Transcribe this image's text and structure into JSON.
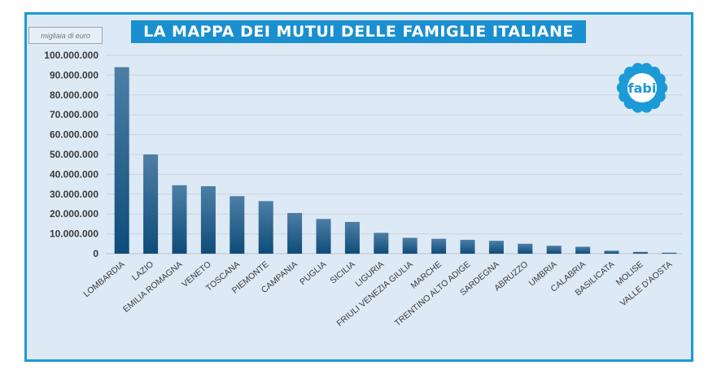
{
  "title": "LA MAPPA DEI MUTUI DELLE FAMIGLIE ITALIANE",
  "unit_label": "migliaia di euro",
  "logo_text": "fabi",
  "colors": {
    "frame": "#1c9ad6",
    "title_bg": "#1a8fd0",
    "bar_top": "#4d7fa6",
    "bar_bottom": "#0d4c7a",
    "logo": "#1c9ad6"
  },
  "chart_data": {
    "type": "bar",
    "title": "LA MAPPA DEI MUTUI DELLE FAMIGLIE ITALIANE",
    "ylabel": "migliaia di euro",
    "ylim": [
      0,
      100000000
    ],
    "yticks": [
      "0",
      "10.000.000",
      "20.000.000",
      "30.000.000",
      "40.000.000",
      "50.000.000",
      "60.000.000",
      "70.000.000",
      "80.000.000",
      "90.000.000",
      "100.000.000"
    ],
    "grid": true,
    "categories": [
      "LOMBARDIA",
      "LAZIO",
      "EMILIA ROMAGNA",
      "VENETO",
      "TOSCANA",
      "PIEMONTE",
      "CAMPANIA",
      "PUGLIA",
      "SICILIA",
      "LIGURIA",
      "FRIULI VENEZIA GIULIA",
      "MARCHE",
      "TRENTINO ALTO ADIGE",
      "SARDEGNA",
      "ABRUZZO",
      "UMBRIA",
      "CALABRIA",
      "BASILICATA",
      "MOLISE",
      "VALLE D'AOSTA"
    ],
    "values": [
      94000000,
      50000000,
      34500000,
      34000000,
      29000000,
      26500000,
      20500000,
      17500000,
      16000000,
      10500000,
      8000000,
      7500000,
      7000000,
      6500000,
      5000000,
      4000000,
      3500000,
      1500000,
      900000,
      500000
    ]
  }
}
